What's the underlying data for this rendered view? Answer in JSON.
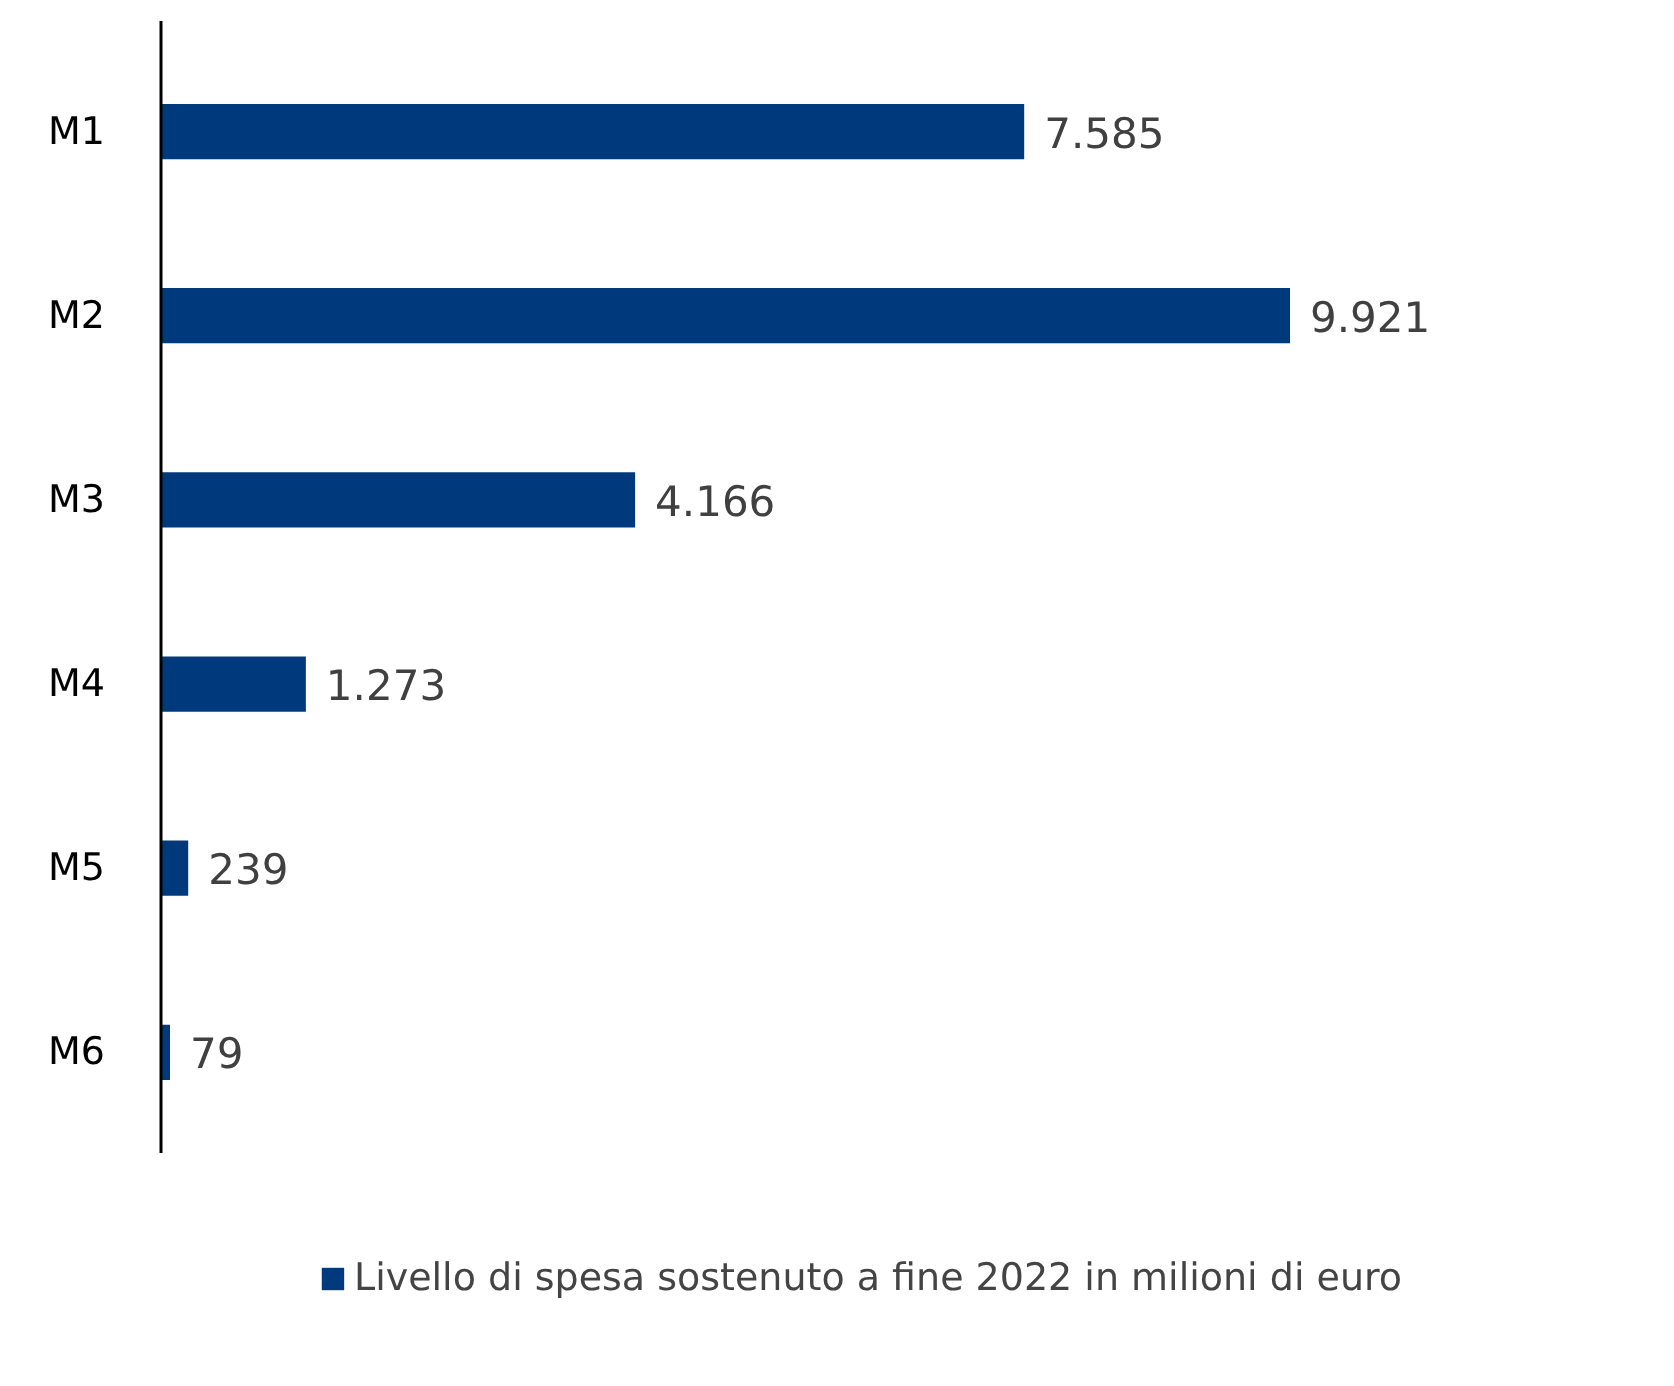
{
  "chart_data": {
    "type": "bar",
    "orientation": "horizontal",
    "categories": [
      "M1",
      "M2",
      "M3",
      "M4",
      "M5",
      "M6"
    ],
    "series": [
      {
        "name": "Livello di spesa sostenuto a fine 2022 in milioni di euro",
        "color": "#003a7d",
        "values": [
          7585,
          9921,
          4166,
          1273,
          239,
          79
        ],
        "value_labels": [
          "7.585",
          "9.921",
          "4.166",
          "1.273",
          "239",
          "79"
        ]
      }
    ],
    "legend": "bottom",
    "grid": false
  }
}
